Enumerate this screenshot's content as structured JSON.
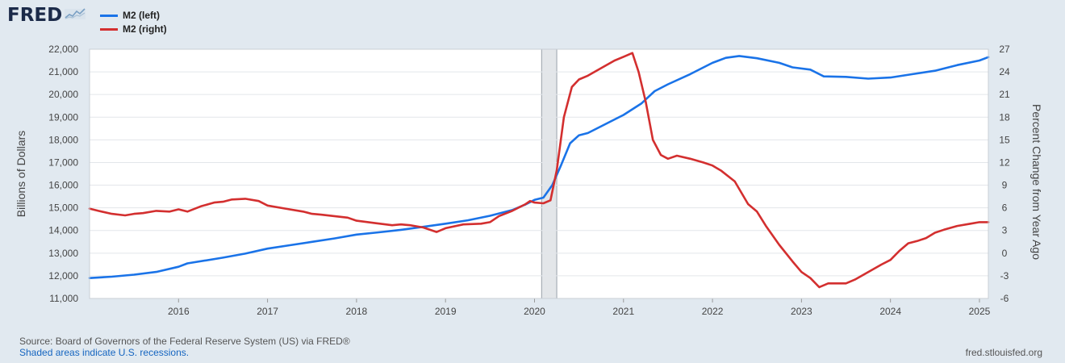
{
  "header": {
    "logo_text": "FRED",
    "logo_icon": "chart-trend-icon",
    "legend": [
      {
        "label": "M2 (left)",
        "color": "#1a73e8"
      },
      {
        "label": "M2 (right)",
        "color": "#d32f2f"
      }
    ]
  },
  "footer": {
    "source": "Source: Board of Governors of the Federal Reserve System (US) via FRED®",
    "recession_note": "Shaded areas indicate U.S. recessions.",
    "site": "fred.stlouisfed.org"
  },
  "chart_data": {
    "type": "line",
    "grid": true,
    "legend_placement": "top-left",
    "xlabel": "",
    "x_range": [
      2015.0,
      2025.1
    ],
    "x_ticks": [
      2016,
      2017,
      2018,
      2019,
      2020,
      2021,
      2022,
      2023,
      2024,
      2025
    ],
    "y_left": {
      "label": "Billions of Dollars",
      "range": [
        11000,
        22000
      ],
      "ticks": [
        11000,
        12000,
        13000,
        14000,
        15000,
        16000,
        17000,
        18000,
        19000,
        20000,
        21000,
        22000
      ],
      "tick_labels": [
        "11,000",
        "12,000",
        "13,000",
        "14,000",
        "15,000",
        "16,000",
        "17,000",
        "18,000",
        "19,000",
        "20,000",
        "21,000",
        "22,000"
      ]
    },
    "y_right": {
      "label": "Percent Change from Year Ago",
      "range": [
        -6,
        27
      ],
      "ticks": [
        -6,
        -3,
        0,
        3,
        6,
        9,
        12,
        15,
        18,
        21,
        24,
        27
      ],
      "tick_labels": [
        "-6",
        "-3",
        "0",
        "3",
        "6",
        "9",
        "12",
        "15",
        "18",
        "21",
        "24",
        "27"
      ]
    },
    "recessions": [
      [
        2020.08,
        2020.25
      ]
    ],
    "series": [
      {
        "name": "M2 (left)",
        "axis": "left",
        "color": "#1a73e8",
        "points": [
          [
            2015.0,
            11900
          ],
          [
            2015.25,
            11960
          ],
          [
            2015.5,
            12050
          ],
          [
            2015.75,
            12170
          ],
          [
            2016.0,
            12400
          ],
          [
            2016.1,
            12550
          ],
          [
            2016.5,
            12800
          ],
          [
            2016.75,
            12980
          ],
          [
            2017.0,
            13200
          ],
          [
            2017.25,
            13350
          ],
          [
            2017.5,
            13500
          ],
          [
            2017.75,
            13650
          ],
          [
            2018.0,
            13820
          ],
          [
            2018.25,
            13920
          ],
          [
            2018.5,
            14030
          ],
          [
            2018.75,
            14160
          ],
          [
            2019.0,
            14300
          ],
          [
            2019.25,
            14450
          ],
          [
            2019.5,
            14650
          ],
          [
            2019.75,
            14900
          ],
          [
            2019.9,
            15150
          ],
          [
            2020.0,
            15350
          ],
          [
            2020.1,
            15450
          ],
          [
            2020.2,
            16000
          ],
          [
            2020.3,
            16900
          ],
          [
            2020.4,
            17850
          ],
          [
            2020.5,
            18200
          ],
          [
            2020.6,
            18300
          ],
          [
            2020.75,
            18600
          ],
          [
            2021.0,
            19100
          ],
          [
            2021.2,
            19600
          ],
          [
            2021.35,
            20150
          ],
          [
            2021.5,
            20450
          ],
          [
            2021.75,
            20900
          ],
          [
            2022.0,
            21400
          ],
          [
            2022.15,
            21620
          ],
          [
            2022.3,
            21700
          ],
          [
            2022.5,
            21600
          ],
          [
            2022.75,
            21400
          ],
          [
            2022.9,
            21200
          ],
          [
            2023.1,
            21100
          ],
          [
            2023.25,
            20800
          ],
          [
            2023.5,
            20780
          ],
          [
            2023.75,
            20700
          ],
          [
            2024.0,
            20750
          ],
          [
            2024.25,
            20900
          ],
          [
            2024.5,
            21050
          ],
          [
            2024.75,
            21300
          ],
          [
            2025.0,
            21500
          ],
          [
            2025.1,
            21650
          ]
        ]
      },
      {
        "name": "M2 (right)",
        "axis": "right",
        "color": "#d32f2f",
        "points": [
          [
            2015.0,
            5.9
          ],
          [
            2015.1,
            5.6
          ],
          [
            2015.25,
            5.2
          ],
          [
            2015.4,
            5.0
          ],
          [
            2015.5,
            5.2
          ],
          [
            2015.6,
            5.3
          ],
          [
            2015.75,
            5.6
          ],
          [
            2015.9,
            5.5
          ],
          [
            2016.0,
            5.8
          ],
          [
            2016.1,
            5.5
          ],
          [
            2016.25,
            6.2
          ],
          [
            2016.4,
            6.7
          ],
          [
            2016.5,
            6.8
          ],
          [
            2016.6,
            7.1
          ],
          [
            2016.75,
            7.2
          ],
          [
            2016.9,
            6.9
          ],
          [
            2017.0,
            6.3
          ],
          [
            2017.2,
            5.9
          ],
          [
            2017.4,
            5.5
          ],
          [
            2017.5,
            5.2
          ],
          [
            2017.6,
            5.1
          ],
          [
            2017.75,
            4.9
          ],
          [
            2017.9,
            4.7
          ],
          [
            2018.0,
            4.3
          ],
          [
            2018.2,
            4.0
          ],
          [
            2018.4,
            3.7
          ],
          [
            2018.5,
            3.8
          ],
          [
            2018.6,
            3.7
          ],
          [
            2018.75,
            3.4
          ],
          [
            2018.9,
            2.8
          ],
          [
            2019.0,
            3.3
          ],
          [
            2019.2,
            3.8
          ],
          [
            2019.4,
            3.9
          ],
          [
            2019.5,
            4.1
          ],
          [
            2019.6,
            4.9
          ],
          [
            2019.75,
            5.6
          ],
          [
            2019.9,
            6.5
          ],
          [
            2019.95,
            6.9
          ],
          [
            2020.0,
            6.7
          ],
          [
            2020.1,
            6.6
          ],
          [
            2020.18,
            7.0
          ],
          [
            2020.25,
            11.0
          ],
          [
            2020.33,
            18.0
          ],
          [
            2020.42,
            22.0
          ],
          [
            2020.5,
            23.0
          ],
          [
            2020.6,
            23.5
          ],
          [
            2020.75,
            24.5
          ],
          [
            2020.9,
            25.5
          ],
          [
            2021.0,
            26.0
          ],
          [
            2021.1,
            26.5
          ],
          [
            2021.17,
            24.0
          ],
          [
            2021.25,
            20.0
          ],
          [
            2021.33,
            15.0
          ],
          [
            2021.42,
            13.0
          ],
          [
            2021.5,
            12.5
          ],
          [
            2021.6,
            12.9
          ],
          [
            2021.75,
            12.5
          ],
          [
            2021.9,
            12.0
          ],
          [
            2022.0,
            11.6
          ],
          [
            2022.1,
            10.9
          ],
          [
            2022.25,
            9.5
          ],
          [
            2022.4,
            6.5
          ],
          [
            2022.5,
            5.5
          ],
          [
            2022.6,
            3.6
          ],
          [
            2022.75,
            1.1
          ],
          [
            2022.9,
            -1.1
          ],
          [
            2023.0,
            -2.5
          ],
          [
            2023.1,
            -3.3
          ],
          [
            2023.2,
            -4.5
          ],
          [
            2023.3,
            -4.0
          ],
          [
            2023.5,
            -4.0
          ],
          [
            2023.6,
            -3.5
          ],
          [
            2023.75,
            -2.5
          ],
          [
            2023.9,
            -1.5
          ],
          [
            2024.0,
            -0.9
          ],
          [
            2024.1,
            0.3
          ],
          [
            2024.2,
            1.3
          ],
          [
            2024.3,
            1.6
          ],
          [
            2024.4,
            2.0
          ],
          [
            2024.5,
            2.7
          ],
          [
            2024.6,
            3.1
          ],
          [
            2024.75,
            3.6
          ],
          [
            2024.9,
            3.9
          ],
          [
            2025.0,
            4.1
          ],
          [
            2025.1,
            4.1
          ]
        ]
      }
    ]
  }
}
